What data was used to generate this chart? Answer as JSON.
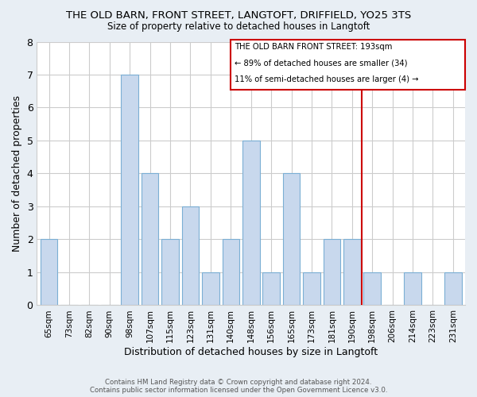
{
  "title": "THE OLD BARN, FRONT STREET, LANGTOFT, DRIFFIELD, YO25 3TS",
  "subtitle": "Size of property relative to detached houses in Langtoft",
  "xlabel": "Distribution of detached houses by size in Langtoft",
  "ylabel": "Number of detached properties",
  "categories": [
    "65sqm",
    "73sqm",
    "82sqm",
    "90sqm",
    "98sqm",
    "107sqm",
    "115sqm",
    "123sqm",
    "131sqm",
    "140sqm",
    "148sqm",
    "156sqm",
    "165sqm",
    "173sqm",
    "181sqm",
    "190sqm",
    "198sqm",
    "206sqm",
    "214sqm",
    "223sqm",
    "231sqm"
  ],
  "values": [
    2,
    0,
    0,
    0,
    7,
    4,
    2,
    3,
    1,
    2,
    5,
    1,
    4,
    1,
    2,
    2,
    1,
    0,
    1,
    0,
    1
  ],
  "bar_color": "#c8d8ed",
  "bar_edge_color": "#7bafd4",
  "ylim": [
    0,
    8
  ],
  "yticks": [
    0,
    1,
    2,
    3,
    4,
    5,
    6,
    7,
    8
  ],
  "grid_color": "#cccccc",
  "background_color": "#ffffff",
  "fig_background_color": "#e8eef4",
  "vline_color": "#cc0000",
  "annotation_box_title": "THE OLD BARN FRONT STREET: 193sqm",
  "annotation_line1": "← 89% of detached houses are smaller (34)",
  "annotation_line2": "11% of semi-detached houses are larger (4) →",
  "footer_line1": "Contains HM Land Registry data © Crown copyright and database right 2024.",
  "footer_line2": "Contains public sector information licensed under the Open Government Licence v3.0."
}
